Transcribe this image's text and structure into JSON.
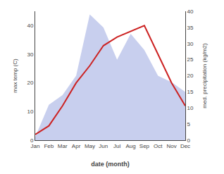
{
  "chart_data": {
    "type": "line",
    "xlabel": "date (month)",
    "ylabel": "max temp (C)",
    "y2label": "med. precipitation (kg/m2)",
    "categories": [
      "Jan",
      "Feb",
      "Mar",
      "Apr",
      "May",
      "Jun",
      "Jul",
      "Aug",
      "Sep",
      "Oct",
      "Nov",
      "Dec"
    ],
    "series": [
      {
        "type": "area",
        "axis": "y2",
        "color": "#c8cfee",
        "values": [
          1,
          11,
          14,
          20,
          39,
          35,
          25,
          33,
          28,
          20,
          18,
          15
        ]
      },
      {
        "type": "line",
        "color": "#cc2222",
        "values": [
          2,
          5,
          12,
          20,
          26,
          33,
          36,
          38,
          40,
          30,
          20,
          12
        ]
      }
    ],
    "ylim": [
      0,
      45
    ],
    "yticks": [
      0,
      10,
      20,
      30,
      40
    ],
    "y2lim": [
      0,
      40
    ],
    "y2ticks": [
      0,
      5,
      10,
      15,
      20,
      25,
      30,
      35,
      40
    ],
    "grid": false
  }
}
